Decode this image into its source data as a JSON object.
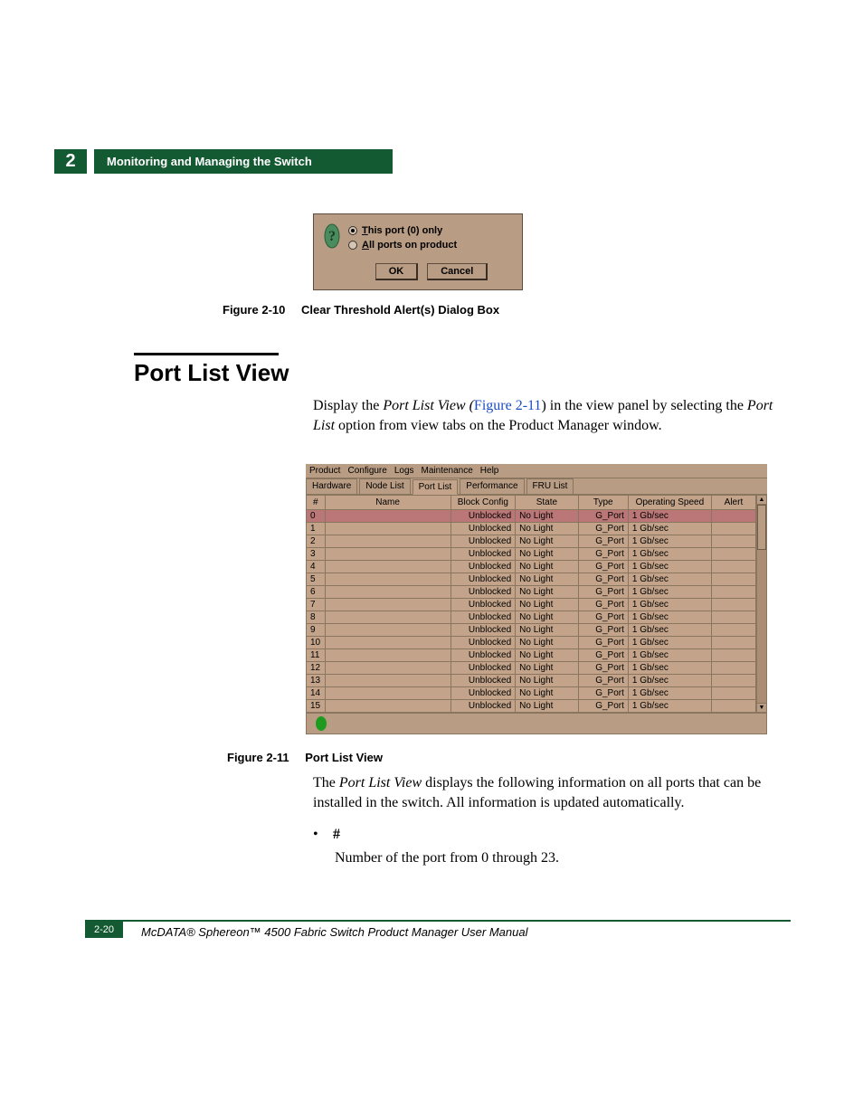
{
  "chapter_number": "2",
  "chapter_title": "Monitoring and Managing the Switch",
  "dialog": {
    "option1": "This port (0) only",
    "option2": "All ports on product",
    "ok": "OK",
    "cancel": "Cancel"
  },
  "fig10": {
    "label": "Figure 2-10",
    "title": "Clear Threshold Alert(s) Dialog Box"
  },
  "section_title": "Port List View",
  "para1_a": "Display the ",
  "para1_b": "Port List View (",
  "para1_link": "Figure 2-11",
  "para1_c": ") in the view panel by selecting the ",
  "para1_d": "Port List",
  "para1_e": " option from view tabs on the Product Manager window.",
  "screenshot": {
    "menus": [
      "Product",
      "Configure",
      "Logs",
      "Maintenance",
      "Help"
    ],
    "tabs": [
      "Hardware",
      "Node List",
      "Port List",
      "Performance",
      "FRU List"
    ],
    "active_tab": "Port List",
    "columns": [
      "#",
      "Name",
      "Block Config",
      "State",
      "Type",
      "Operating Speed",
      "Alert"
    ],
    "rows": [
      {
        "num": "0",
        "name": "",
        "block": "Unblocked",
        "state": "No Light",
        "type": "G_Port",
        "speed": "1 Gb/sec",
        "alert": "",
        "selected": true
      },
      {
        "num": "1",
        "name": "",
        "block": "Unblocked",
        "state": "No Light",
        "type": "G_Port",
        "speed": "1 Gb/sec",
        "alert": ""
      },
      {
        "num": "2",
        "name": "",
        "block": "Unblocked",
        "state": "No Light",
        "type": "G_Port",
        "speed": "1 Gb/sec",
        "alert": ""
      },
      {
        "num": "3",
        "name": "",
        "block": "Unblocked",
        "state": "No Light",
        "type": "G_Port",
        "speed": "1 Gb/sec",
        "alert": ""
      },
      {
        "num": "4",
        "name": "",
        "block": "Unblocked",
        "state": "No Light",
        "type": "G_Port",
        "speed": "1 Gb/sec",
        "alert": ""
      },
      {
        "num": "5",
        "name": "",
        "block": "Unblocked",
        "state": "No Light",
        "type": "G_Port",
        "speed": "1 Gb/sec",
        "alert": ""
      },
      {
        "num": "6",
        "name": "",
        "block": "Unblocked",
        "state": "No Light",
        "type": "G_Port",
        "speed": "1 Gb/sec",
        "alert": ""
      },
      {
        "num": "7",
        "name": "",
        "block": "Unblocked",
        "state": "No Light",
        "type": "G_Port",
        "speed": "1 Gb/sec",
        "alert": ""
      },
      {
        "num": "8",
        "name": "",
        "block": "Unblocked",
        "state": "No Light",
        "type": "G_Port",
        "speed": "1 Gb/sec",
        "alert": ""
      },
      {
        "num": "9",
        "name": "",
        "block": "Unblocked",
        "state": "No Light",
        "type": "G_Port",
        "speed": "1 Gb/sec",
        "alert": ""
      },
      {
        "num": "10",
        "name": "",
        "block": "Unblocked",
        "state": "No Light",
        "type": "G_Port",
        "speed": "1 Gb/sec",
        "alert": ""
      },
      {
        "num": "11",
        "name": "",
        "block": "Unblocked",
        "state": "No Light",
        "type": "G_Port",
        "speed": "1 Gb/sec",
        "alert": ""
      },
      {
        "num": "12",
        "name": "",
        "block": "Unblocked",
        "state": "No Light",
        "type": "G_Port",
        "speed": "1 Gb/sec",
        "alert": ""
      },
      {
        "num": "13",
        "name": "",
        "block": "Unblocked",
        "state": "No Light",
        "type": "G_Port",
        "speed": "1 Gb/sec",
        "alert": ""
      },
      {
        "num": "14",
        "name": "",
        "block": "Unblocked",
        "state": "No Light",
        "type": "G_Port",
        "speed": "1 Gb/sec",
        "alert": ""
      },
      {
        "num": "15",
        "name": "",
        "block": "Unblocked",
        "state": "No Light",
        "type": "G_Port",
        "speed": "1 Gb/sec",
        "alert": ""
      }
    ]
  },
  "fig11": {
    "label": "Figure 2-11",
    "title": "Port List View"
  },
  "para2_a": "The ",
  "para2_b": "Port List View",
  "para2_c": " displays the following information on all ports that can be installed in the switch. All information is updated automatically.",
  "bullet_hash": "#",
  "bullet_desc": "Number of the port from 0 through 23.",
  "page_number": "2-20",
  "footer_text": "McDATA® Sphereon™ 4500 Fabric Switch Product Manager User Manual"
}
